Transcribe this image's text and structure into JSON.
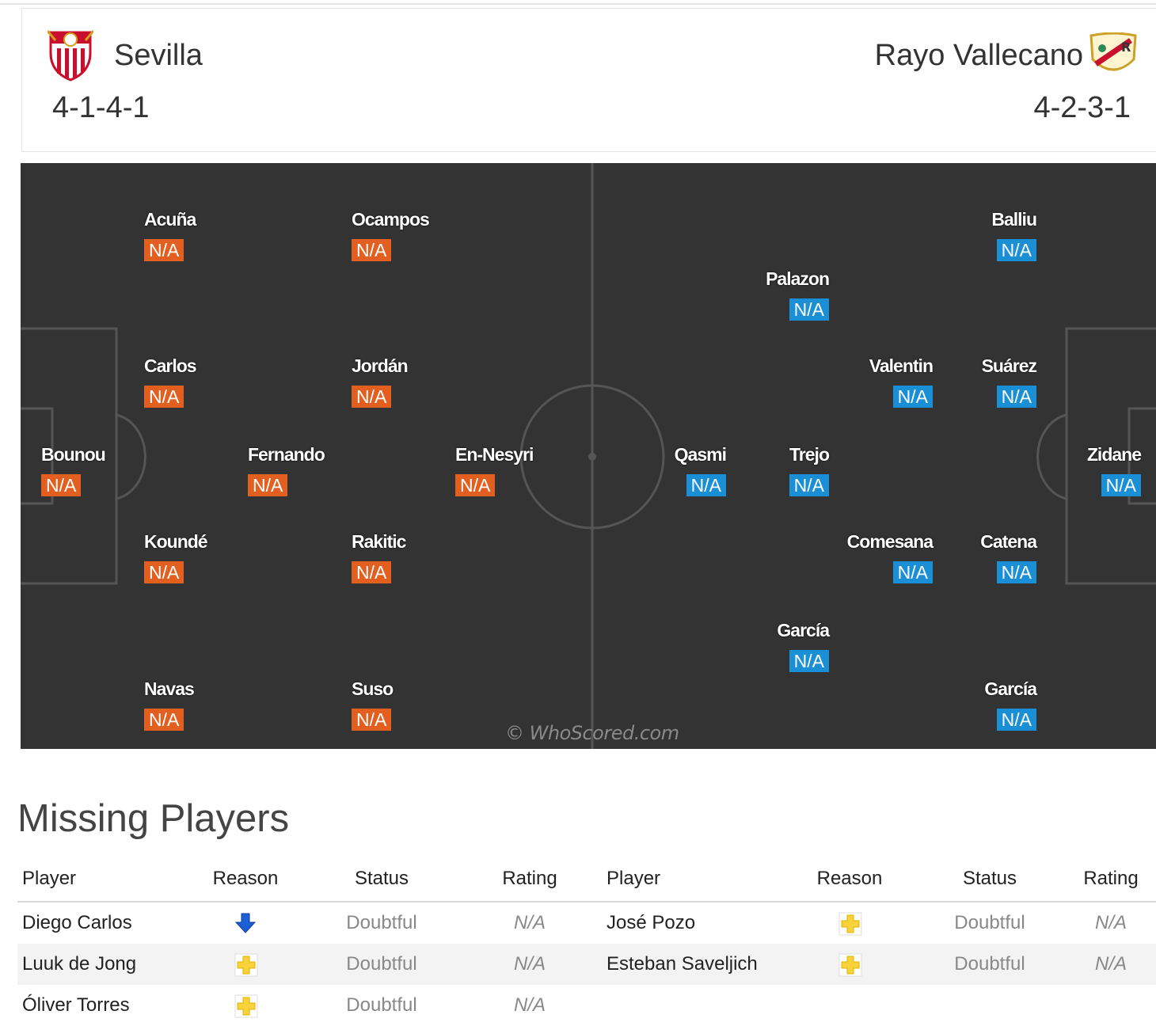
{
  "header": {
    "home": {
      "name": "Sevilla",
      "formation": "4-1-4-1",
      "crest_icon": "sevilla-crest-icon"
    },
    "away": {
      "name": "Rayo Vallecano",
      "formation": "4-2-3-1",
      "crest_icon": "rayo-vallecano-crest-icon"
    }
  },
  "colors": {
    "home_rating": "#e35f1f",
    "away_rating": "#1a8fd6",
    "pitch": "#333333"
  },
  "pitch": {
    "home_players": [
      {
        "name": "Acuña",
        "rating": "N/A"
      },
      {
        "name": "Ocampos",
        "rating": "N/A"
      },
      {
        "name": "Carlos",
        "rating": "N/A"
      },
      {
        "name": "Jordán",
        "rating": "N/A"
      },
      {
        "name": "Bounou",
        "rating": "N/A"
      },
      {
        "name": "Fernando",
        "rating": "N/A"
      },
      {
        "name": "En-Nesyri",
        "rating": "N/A"
      },
      {
        "name": "Koundé",
        "rating": "N/A"
      },
      {
        "name": "Rakitic",
        "rating": "N/A"
      },
      {
        "name": "Navas",
        "rating": "N/A"
      },
      {
        "name": "Suso",
        "rating": "N/A"
      }
    ],
    "away_players": [
      {
        "name": "Balliu",
        "rating": "N/A"
      },
      {
        "name": "Palazon",
        "rating": "N/A"
      },
      {
        "name": "Valentin",
        "rating": "N/A"
      },
      {
        "name": "Suárez",
        "rating": "N/A"
      },
      {
        "name": "Qasmi",
        "rating": "N/A"
      },
      {
        "name": "Trejo",
        "rating": "N/A"
      },
      {
        "name": "Zidane",
        "rating": "N/A"
      },
      {
        "name": "Comesana",
        "rating": "N/A"
      },
      {
        "name": "Catena",
        "rating": "N/A"
      },
      {
        "name": "García",
        "rating": "N/A"
      },
      {
        "name": "García",
        "rating": "N/A"
      }
    ],
    "watermark": "© WhoScored.com"
  },
  "missing": {
    "title": "Missing Players",
    "columns": [
      "Player",
      "Reason",
      "Status",
      "Rating",
      "Player",
      "Reason",
      "Status",
      "Rating"
    ],
    "rows": [
      {
        "home_player": "Diego Carlos",
        "home_reason": "arrow-down-icon",
        "home_status": "Doubtful",
        "home_rating": "N/A",
        "away_player": "José Pozo",
        "away_reason": "injury-cross-icon",
        "away_status": "Doubtful",
        "away_rating": "N/A"
      },
      {
        "home_player": "Luuk de Jong",
        "home_reason": "injury-cross-icon",
        "home_status": "Doubtful",
        "home_rating": "N/A",
        "away_player": "Esteban Saveljich",
        "away_reason": "injury-cross-icon",
        "away_status": "Doubtful",
        "away_rating": "N/A"
      },
      {
        "home_player": "Óliver Torres",
        "home_reason": "injury-cross-icon",
        "home_status": "Doubtful",
        "home_rating": "N/A"
      }
    ]
  }
}
